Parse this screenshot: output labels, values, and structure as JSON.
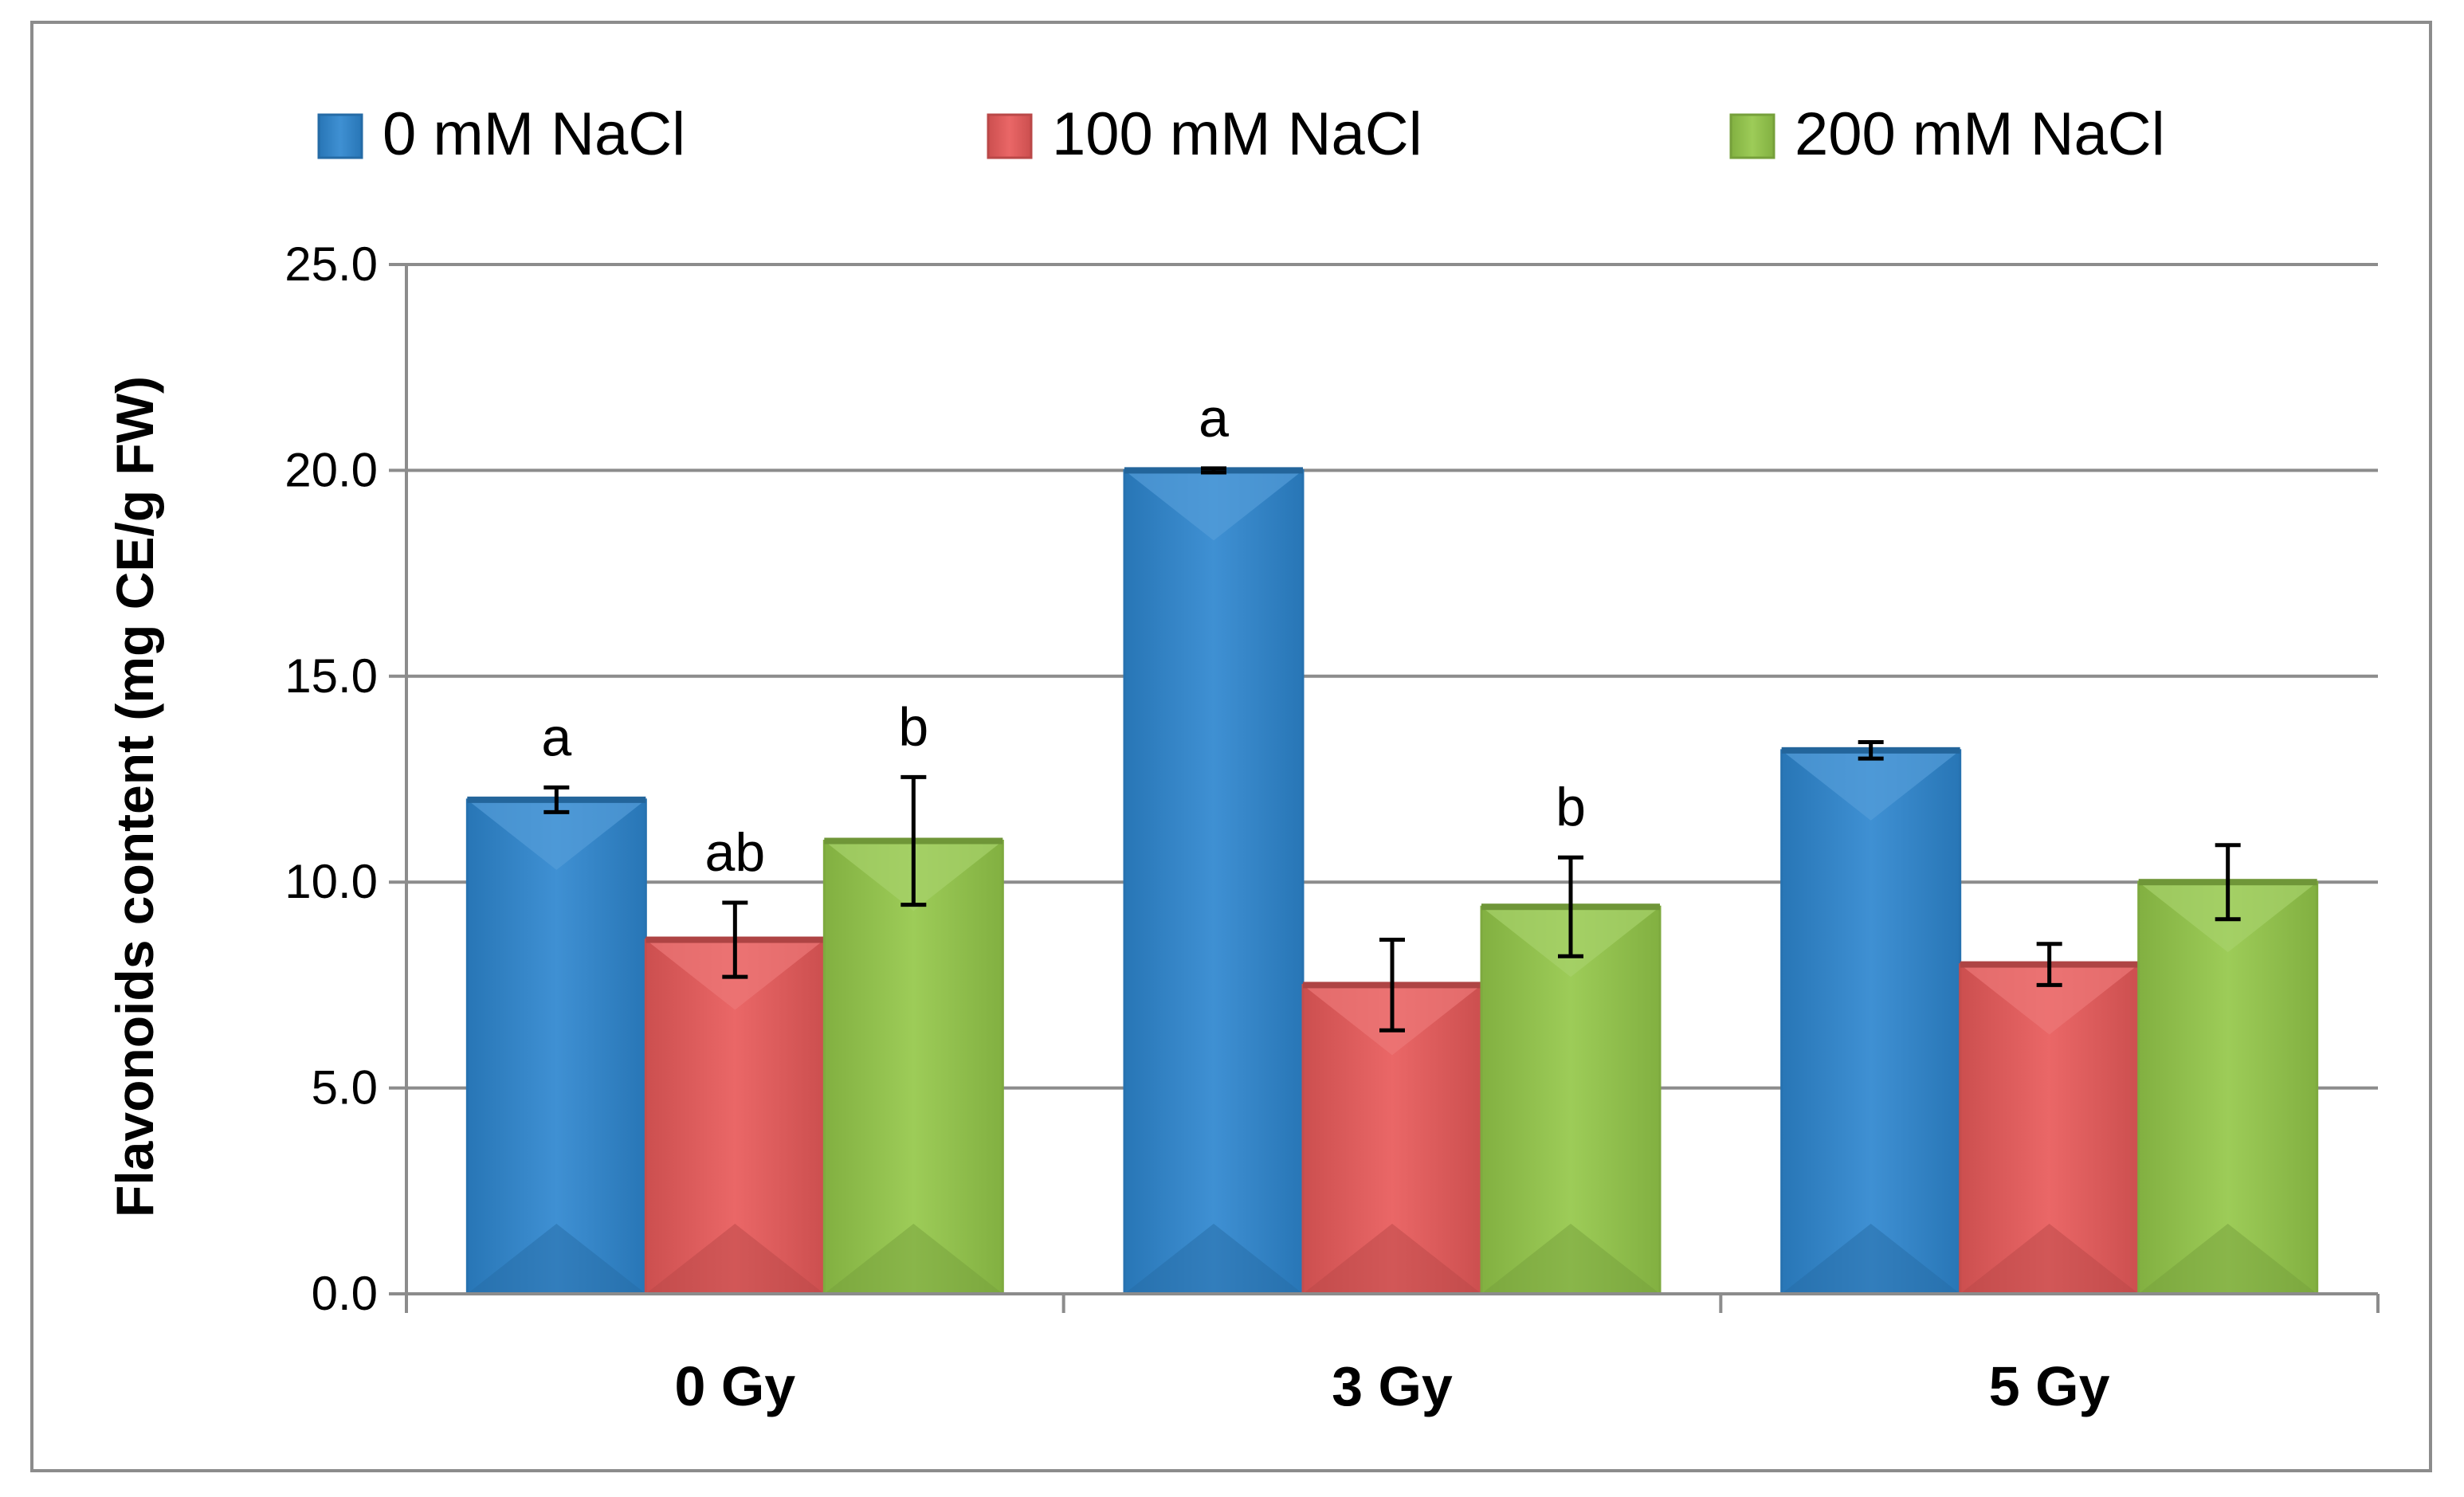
{
  "chart_data": {
    "type": "bar",
    "title": "",
    "xlabel": "",
    "ylabel": "Flavonoids content (mg CE/g FW)",
    "ylim": [
      0,
      25
    ],
    "yticks": [
      "0.0",
      "5.0",
      "10.0",
      "15.0",
      "20.0",
      "25.0"
    ],
    "grid": true,
    "legend_position": "top",
    "categories": [
      "0 Gy",
      "3 Gy",
      "5 Gy"
    ],
    "series": [
      {
        "name": "0 mM NaCl",
        "color": "#2e86cf",
        "values": [
          12.0,
          20.0,
          13.2
        ],
        "errors": [
          0.3,
          0.05,
          0.2
        ],
        "labels": [
          "a",
          "a",
          ""
        ]
      },
      {
        "name": "100 mM NaCl",
        "color": "#e85a5a",
        "values": [
          8.6,
          7.5,
          8.0
        ],
        "errors": [
          0.9,
          1.1,
          0.5
        ],
        "labels": [
          "ab",
          "",
          ""
        ]
      },
      {
        "name": "200 mM NaCl",
        "color": "#94c84a",
        "values": [
          11.0,
          9.4,
          10.0
        ],
        "errors": [
          1.55,
          1.2,
          0.9
        ],
        "labels": [
          "b",
          "b",
          ""
        ]
      }
    ]
  }
}
